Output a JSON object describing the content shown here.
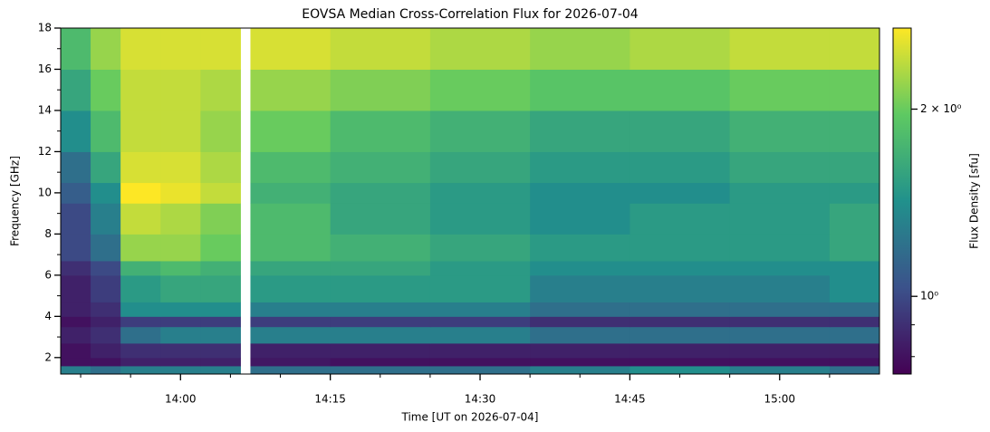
{
  "chart_data": {
    "type": "heatmap",
    "title": "EOVSA Median Cross-Correlation Flux for 2026-07-04",
    "x_label": "Time [UT on 2026-07-04]",
    "y_label": "Frequency [GHz]",
    "colorbar_label": "Flux Density [sfu]",
    "x_edges": [
      "13:48",
      "13:51",
      "13:54",
      "13:58",
      "14:02",
      "14:06",
      "14:07",
      "14:15",
      "14:25",
      "14:35",
      "14:45",
      "14:55",
      "15:05",
      "15:10"
    ],
    "y_edges": [
      1.2,
      1.6,
      2,
      2.7,
      3.5,
      4,
      4.7,
      6,
      6.7,
      8,
      9.5,
      10.5,
      12,
      14,
      16,
      18
    ],
    "values": [
      [
        1.3,
        1.2,
        1.3,
        1.3,
        1.3,
        null,
        1.2,
        1.2,
        1.2,
        1.3,
        1.4,
        1.3,
        1.2
      ],
      [
        0.8,
        0.8,
        0.85,
        0.85,
        0.85,
        null,
        0.82,
        0.8,
        0.8,
        0.8,
        0.8,
        0.8,
        0.8
      ],
      [
        0.8,
        0.85,
        0.9,
        0.9,
        0.9,
        null,
        0.85,
        0.85,
        0.85,
        0.85,
        0.85,
        0.85,
        0.85
      ],
      [
        0.85,
        0.9,
        1.2,
        1.3,
        1.3,
        null,
        1.3,
        1.3,
        1.3,
        1.2,
        1.2,
        1.2,
        1.2
      ],
      [
        0.8,
        0.85,
        0.95,
        0.95,
        0.95,
        null,
        0.95,
        0.95,
        0.95,
        0.9,
        0.9,
        0.9,
        0.9
      ],
      [
        0.85,
        0.9,
        1.4,
        1.4,
        1.4,
        null,
        1.3,
        1.3,
        1.3,
        1.2,
        1.2,
        1.2,
        1.2
      ],
      [
        0.85,
        0.95,
        1.5,
        1.6,
        1.6,
        null,
        1.5,
        1.5,
        1.5,
        1.3,
        1.3,
        1.3,
        1.4
      ],
      [
        0.9,
        1.0,
        1.7,
        1.8,
        1.7,
        null,
        1.6,
        1.6,
        1.5,
        1.4,
        1.4,
        1.4,
        1.4
      ],
      [
        1.0,
        1.2,
        2.2,
        2.2,
        2.0,
        null,
        1.8,
        1.7,
        1.6,
        1.5,
        1.5,
        1.5,
        1.6
      ],
      [
        1.0,
        1.3,
        2.4,
        2.3,
        2.1,
        null,
        1.8,
        1.6,
        1.5,
        1.4,
        1.5,
        1.5,
        1.6
      ],
      [
        1.1,
        1.4,
        2.7,
        2.6,
        2.4,
        null,
        1.7,
        1.6,
        1.5,
        1.4,
        1.4,
        1.5,
        1.5
      ],
      [
        1.2,
        1.6,
        2.5,
        2.5,
        2.3,
        null,
        1.8,
        1.7,
        1.6,
        1.5,
        1.5,
        1.6,
        1.6
      ],
      [
        1.4,
        1.8,
        2.4,
        2.4,
        2.2,
        null,
        2.0,
        1.8,
        1.7,
        1.6,
        1.6,
        1.7,
        1.7
      ],
      [
        1.6,
        2.0,
        2.4,
        2.4,
        2.3,
        null,
        2.2,
        2.1,
        2.0,
        1.9,
        1.9,
        2.0,
        2.0
      ],
      [
        1.8,
        2.2,
        2.5,
        2.5,
        2.5,
        null,
        2.5,
        2.4,
        2.3,
        2.2,
        2.3,
        2.4,
        2.4
      ]
    ],
    "xlim": [
      "13:48",
      "15:10"
    ],
    "xticks": [
      "14:00",
      "14:15",
      "14:30",
      "14:45",
      "15:00"
    ],
    "xminorticks": [
      "13:50",
      "13:55",
      "14:05",
      "14:10",
      "14:20",
      "14:25",
      "14:35",
      "14:40",
      "14:50",
      "14:55",
      "15:05"
    ],
    "ylim": [
      1.2,
      18
    ],
    "yticks": [
      2,
      4,
      6,
      8,
      10,
      12,
      14,
      16,
      18
    ],
    "yminorticks": [
      3,
      5,
      7,
      9,
      11,
      13,
      15,
      17
    ],
    "clim": [
      0.75,
      2.7
    ],
    "color_scale": "log",
    "zticks": [
      {
        "value": 2,
        "label": "2 × 10⁰"
      },
      {
        "value": 1,
        "label": "10⁰"
      }
    ],
    "zminorticks": [
      0.8,
      0.9
    ],
    "colormap": [
      "#440154",
      "#3b528b",
      "#21918c",
      "#5ec962",
      "#fde725"
    ]
  }
}
